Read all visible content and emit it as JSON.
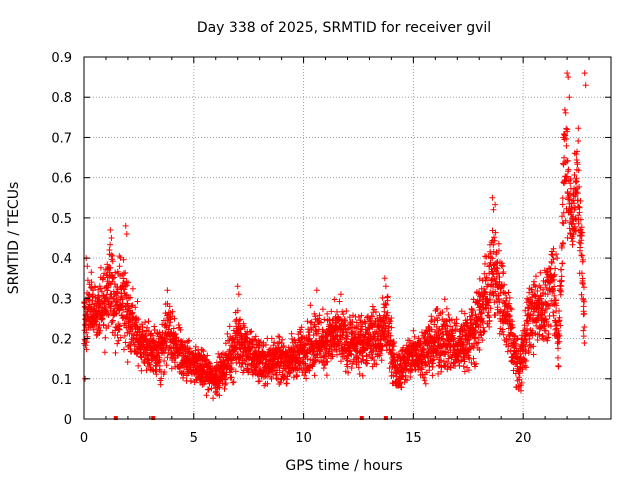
{
  "chart_data": {
    "type": "scatter",
    "title": "Day 338 of 2025, SRMTID for receiver gvil",
    "xlabel": "GPS time / hours",
    "ylabel": "SRMTID / TECUs",
    "xlim": [
      0,
      24
    ],
    "ylim": [
      0,
      0.9
    ],
    "xticks": [
      0,
      5,
      10,
      15,
      20
    ],
    "yticks": [
      0,
      0.1,
      0.2,
      0.3,
      0.4,
      0.5,
      0.6,
      0.7,
      0.8,
      0.9
    ],
    "ytick_labels": [
      "0",
      "0.1",
      "0.2",
      "0.3",
      "0.4",
      "0.5",
      "0.6",
      "0.7",
      "0.8",
      "0.9"
    ],
    "grid": true,
    "marker": "+",
    "color": "#ff0000",
    "series": [
      {
        "name": "SRMTID",
        "profile": [
          [
            0.0,
            0.25,
            0.12
          ],
          [
            0.3,
            0.27,
            0.1
          ],
          [
            0.6,
            0.26,
            0.08
          ],
          [
            1.0,
            0.3,
            0.13
          ],
          [
            1.2,
            0.33,
            0.12
          ],
          [
            1.5,
            0.28,
            0.1
          ],
          [
            1.8,
            0.3,
            0.14
          ],
          [
            2.1,
            0.24,
            0.1
          ],
          [
            2.5,
            0.2,
            0.08
          ],
          [
            3.0,
            0.17,
            0.07
          ],
          [
            3.5,
            0.16,
            0.07
          ],
          [
            3.8,
            0.22,
            0.1
          ],
          [
            4.2,
            0.17,
            0.07
          ],
          [
            4.6,
            0.15,
            0.06
          ],
          [
            5.0,
            0.14,
            0.05
          ],
          [
            5.5,
            0.12,
            0.05
          ],
          [
            5.9,
            0.1,
            0.05
          ],
          [
            6.3,
            0.12,
            0.05
          ],
          [
            6.7,
            0.16,
            0.07
          ],
          [
            7.0,
            0.2,
            0.09
          ],
          [
            7.4,
            0.17,
            0.07
          ],
          [
            7.8,
            0.15,
            0.06
          ],
          [
            8.2,
            0.14,
            0.06
          ],
          [
            8.6,
            0.15,
            0.06
          ],
          [
            9.0,
            0.14,
            0.06
          ],
          [
            9.5,
            0.15,
            0.06
          ],
          [
            10.0,
            0.17,
            0.07
          ],
          [
            10.5,
            0.2,
            0.09
          ],
          [
            11.0,
            0.19,
            0.08
          ],
          [
            11.5,
            0.21,
            0.08
          ],
          [
            12.0,
            0.19,
            0.08
          ],
          [
            12.5,
            0.18,
            0.07
          ],
          [
            13.0,
            0.21,
            0.08
          ],
          [
            13.5,
            0.2,
            0.08
          ],
          [
            13.8,
            0.24,
            0.1
          ],
          [
            14.2,
            0.11,
            0.05
          ],
          [
            14.6,
            0.14,
            0.06
          ],
          [
            15.0,
            0.16,
            0.07
          ],
          [
            15.5,
            0.17,
            0.07
          ],
          [
            16.0,
            0.19,
            0.08
          ],
          [
            16.5,
            0.2,
            0.09
          ],
          [
            17.0,
            0.18,
            0.08
          ],
          [
            17.5,
            0.2,
            0.09
          ],
          [
            17.9,
            0.24,
            0.1
          ],
          [
            18.3,
            0.3,
            0.12
          ],
          [
            18.7,
            0.38,
            0.14
          ],
          [
            19.0,
            0.3,
            0.12
          ],
          [
            19.4,
            0.22,
            0.1
          ],
          [
            19.8,
            0.12,
            0.06
          ],
          [
            20.2,
            0.24,
            0.1
          ],
          [
            20.6,
            0.27,
            0.1
          ],
          [
            21.0,
            0.28,
            0.1
          ],
          [
            21.4,
            0.34,
            0.12
          ],
          [
            21.6,
            0.17,
            0.05
          ],
          [
            21.9,
            0.65,
            0.22
          ],
          [
            22.2,
            0.5,
            0.1
          ],
          [
            22.5,
            0.58,
            0.15
          ],
          [
            22.8,
            0.25,
            0.1
          ]
        ],
        "spikes": [
          [
            0.05,
            0.1
          ],
          [
            0.1,
            0.4
          ],
          [
            0.15,
            0.38
          ],
          [
            1.2,
            0.47
          ],
          [
            1.25,
            0.45
          ],
          [
            1.9,
            0.48
          ],
          [
            1.95,
            0.46
          ],
          [
            3.8,
            0.32
          ],
          [
            7.0,
            0.33
          ],
          [
            7.05,
            0.31
          ],
          [
            10.6,
            0.32
          ],
          [
            11.7,
            0.31
          ],
          [
            13.7,
            0.35
          ],
          [
            13.75,
            0.33
          ],
          [
            18.6,
            0.55
          ],
          [
            18.65,
            0.52
          ],
          [
            19.9,
            0.07
          ],
          [
            21.5,
            0.41
          ],
          [
            21.55,
            0.4
          ],
          [
            22.0,
            0.86
          ],
          [
            22.05,
            0.85
          ],
          [
            22.1,
            0.8
          ],
          [
            22.8,
            0.86
          ],
          [
            22.85,
            0.83
          ],
          [
            22.75,
            0.28
          ]
        ],
        "seed": 338
      }
    ],
    "zero_markers": [
      1.45,
      3.15,
      12.65,
      13.75
    ]
  }
}
